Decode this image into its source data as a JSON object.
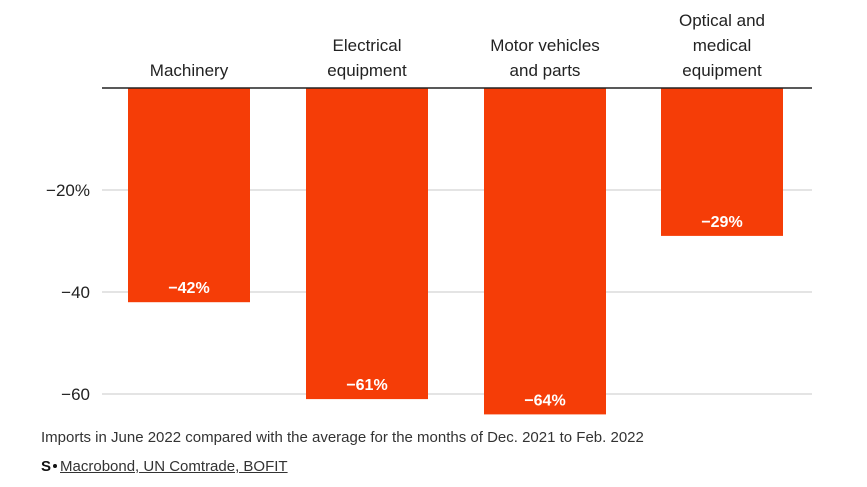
{
  "chart_data": {
    "type": "bar",
    "categories": [
      [
        "Machinery"
      ],
      [
        "Electrical",
        "equipment"
      ],
      [
        "Motor vehicles",
        "and parts"
      ],
      [
        "Optical and",
        "medical",
        "equipment"
      ]
    ],
    "values": [
      -42,
      -61,
      -64,
      -29
    ],
    "data_labels": [
      "−42%",
      "−61%",
      "−64%",
      "−29%"
    ],
    "yticks": [
      {
        "value": -20,
        "label": "−20%"
      },
      {
        "value": -40,
        "label": "−40"
      },
      {
        "value": -60,
        "label": "−60"
      }
    ],
    "ylim": [
      -65,
      0
    ],
    "grid": true,
    "bar_color": "#f53d07",
    "title": "",
    "xlabel": "",
    "ylabel": ""
  },
  "footer": {
    "note": "Imports in June 2022 compared with the average for the months of Dec. 2021 to Feb. 2022",
    "source_logo": "S",
    "source_text": "Macrobond, UN Comtrade, BOFIT"
  }
}
